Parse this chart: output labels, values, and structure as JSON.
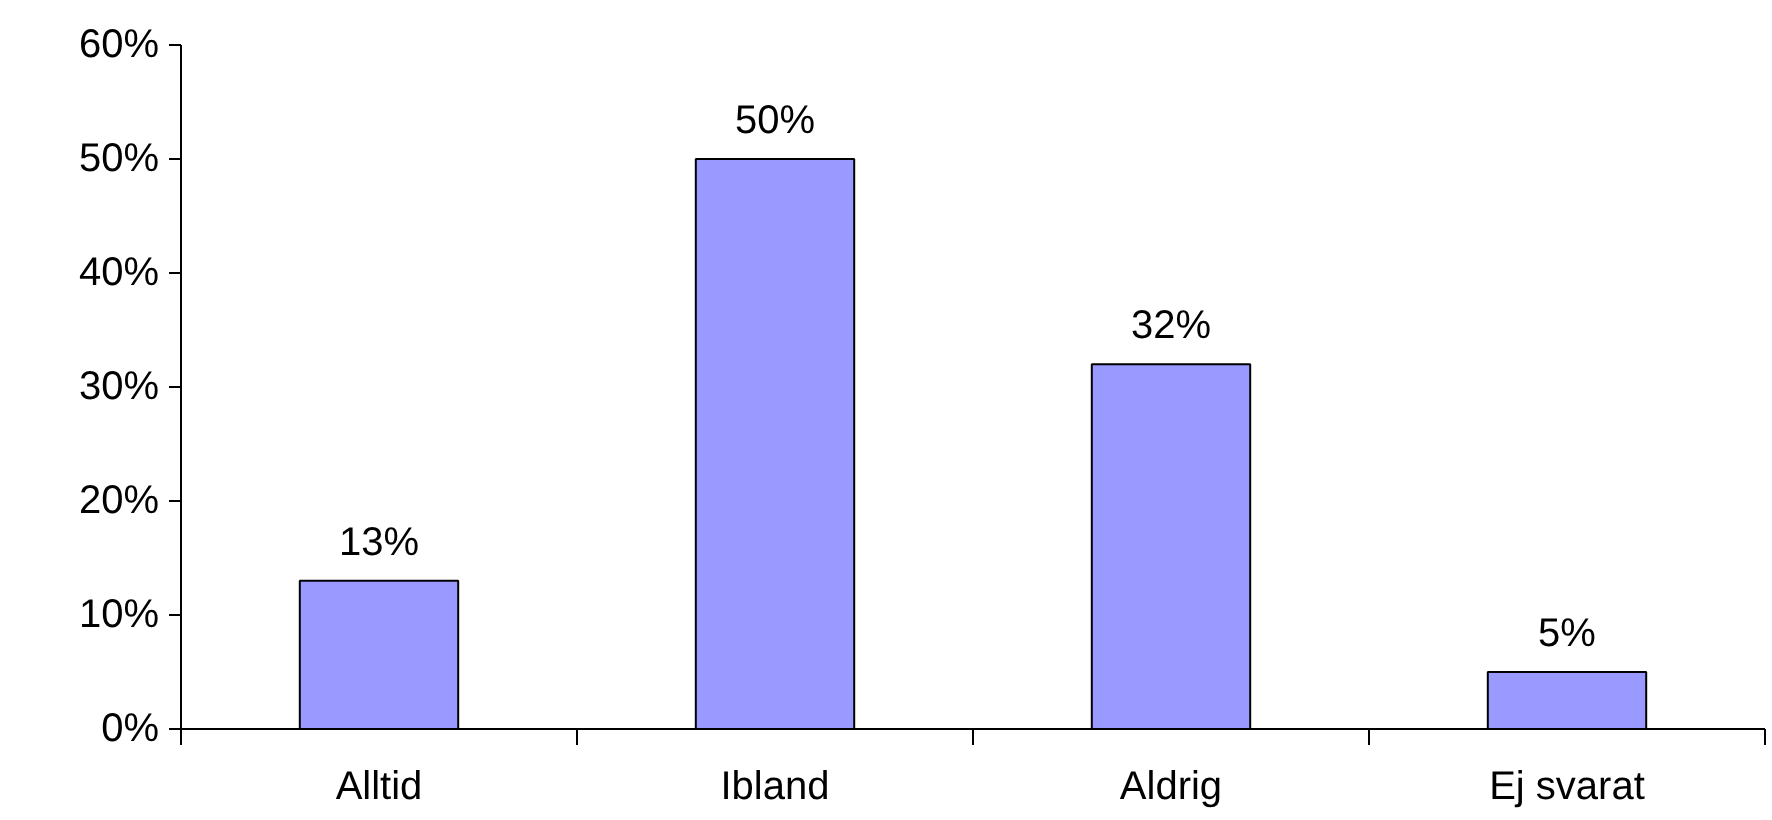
{
  "chart_data": {
    "type": "bar",
    "categories": [
      "Alltid",
      "Ibland",
      "Aldrig",
      "Ej svarat"
    ],
    "values": [
      13,
      50,
      32,
      5
    ],
    "value_labels": [
      "13%",
      "50%",
      "32%",
      "5%"
    ],
    "color": "#9999ff",
    "ylim": [
      0,
      60
    ],
    "yticks": [
      {
        "value": 0,
        "label": "0%"
      },
      {
        "value": 10,
        "label": "10%"
      },
      {
        "value": 20,
        "label": "20%"
      },
      {
        "value": 30,
        "label": "30%"
      },
      {
        "value": 40,
        "label": "40%"
      },
      {
        "value": 50,
        "label": "50%"
      },
      {
        "value": 60,
        "label": "60%"
      }
    ],
    "grid": false
  }
}
